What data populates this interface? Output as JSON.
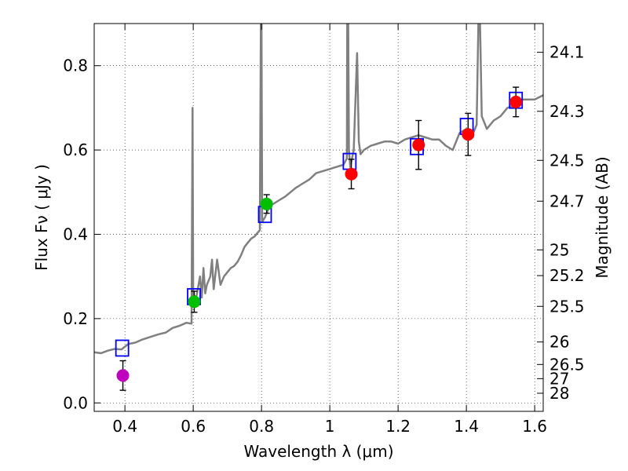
{
  "chart_data": {
    "type": "scatter",
    "xlabel": "Wavelength  λ (μm)",
    "ylabel": "Flux  Fν  ( μJy )",
    "y2label": "Magnitude (AB)",
    "xlim": [
      0.31,
      1.625
    ],
    "ylim": [
      -0.02,
      0.9
    ],
    "x_ticks": [
      "0.4",
      "0.6",
      "0.8",
      "1",
      "1.2",
      "1.4",
      "1.6"
    ],
    "x_tick_values": [
      0.4,
      0.6,
      0.8,
      1.0,
      1.2,
      1.4,
      1.6
    ],
    "y_ticks": [
      "0.0",
      "0.2",
      "0.4",
      "0.6",
      "0.8"
    ],
    "y_tick_values": [
      0.0,
      0.2,
      0.4,
      0.6,
      0.8
    ],
    "y2_ticks": [
      "24.1",
      "24.3",
      "24.5",
      "24.7",
      "25",
      "25.2",
      "25.5",
      "26",
      "26.5",
      "27",
      "28"
    ],
    "y2_tick_values": [
      24.1,
      24.3,
      24.5,
      24.7,
      25.0,
      25.2,
      25.5,
      26.0,
      26.5,
      27.0,
      28.0
    ],
    "grid": true,
    "model_color": "#808080",
    "observed_points": [
      {
        "x": 0.394,
        "y": 0.065,
        "err": 0.035,
        "color": "#bf00bf"
      },
      {
        "x": 0.603,
        "y": 0.24,
        "err": 0.025,
        "color": "#00bf00"
      },
      {
        "x": 0.815,
        "y": 0.472,
        "err": 0.022,
        "color": "#00bf00"
      },
      {
        "x": 1.063,
        "y": 0.543,
        "err": 0.035,
        "color": "#ff0000"
      },
      {
        "x": 1.26,
        "y": 0.612,
        "err": 0.058,
        "color": "#ff0000"
      },
      {
        "x": 1.405,
        "y": 0.637,
        "err": 0.05,
        "color": "#ff0000"
      },
      {
        "x": 1.545,
        "y": 0.714,
        "err": 0.035,
        "color": "#ff0000"
      }
    ],
    "model_photometry": {
      "color": "#0000ff",
      "points": [
        {
          "x": 0.392,
          "y": 0.13
        },
        {
          "x": 0.602,
          "y": 0.252
        },
        {
          "x": 0.81,
          "y": 0.447
        },
        {
          "x": 1.058,
          "y": 0.573
        },
        {
          "x": 1.255,
          "y": 0.608
        },
        {
          "x": 1.401,
          "y": 0.656
        },
        {
          "x": 1.545,
          "y": 0.718
        }
      ]
    },
    "model_spectrum": [
      [
        0.31,
        0.12
      ],
      [
        0.33,
        0.118
      ],
      [
        0.35,
        0.124
      ],
      [
        0.37,
        0.128
      ],
      [
        0.39,
        0.127
      ],
      [
        0.41,
        0.14
      ],
      [
        0.43,
        0.143
      ],
      [
        0.45,
        0.15
      ],
      [
        0.48,
        0.158
      ],
      [
        0.5,
        0.163
      ],
      [
        0.52,
        0.167
      ],
      [
        0.54,
        0.178
      ],
      [
        0.56,
        0.183
      ],
      [
        0.58,
        0.19
      ],
      [
        0.595,
        0.188
      ],
      [
        0.598,
        0.7
      ],
      [
        0.6,
        0.25
      ],
      [
        0.61,
        0.255
      ],
      [
        0.62,
        0.3
      ],
      [
        0.625,
        0.25
      ],
      [
        0.63,
        0.32
      ],
      [
        0.635,
        0.26
      ],
      [
        0.64,
        0.28
      ],
      [
        0.65,
        0.3
      ],
      [
        0.655,
        0.34
      ],
      [
        0.66,
        0.27
      ],
      [
        0.67,
        0.34
      ],
      [
        0.68,
        0.28
      ],
      [
        0.69,
        0.3
      ],
      [
        0.7,
        0.31
      ],
      [
        0.71,
        0.32
      ],
      [
        0.72,
        0.325
      ],
      [
        0.73,
        0.335
      ],
      [
        0.74,
        0.35
      ],
      [
        0.75,
        0.37
      ],
      [
        0.76,
        0.38
      ],
      [
        0.77,
        0.39
      ],
      [
        0.78,
        0.395
      ],
      [
        0.795,
        0.41
      ],
      [
        0.798,
        0.9
      ],
      [
        0.8,
        0.9
      ],
      [
        0.802,
        0.43
      ],
      [
        0.81,
        0.44
      ],
      [
        0.82,
        0.46
      ],
      [
        0.83,
        0.47
      ],
      [
        0.85,
        0.48
      ],
      [
        0.87,
        0.49
      ],
      [
        0.9,
        0.51
      ],
      [
        0.92,
        0.52
      ],
      [
        0.94,
        0.53
      ],
      [
        0.96,
        0.545
      ],
      [
        0.98,
        0.55
      ],
      [
        1.0,
        0.555
      ],
      [
        1.02,
        0.56
      ],
      [
        1.04,
        0.565
      ],
      [
        1.05,
        0.58
      ],
      [
        1.051,
        0.9
      ],
      [
        1.054,
        0.9
      ],
      [
        1.056,
        0.6
      ],
      [
        1.06,
        0.56
      ],
      [
        1.07,
        0.6
      ],
      [
        1.08,
        0.83
      ],
      [
        1.085,
        0.62
      ],
      [
        1.09,
        0.59
      ],
      [
        1.1,
        0.6
      ],
      [
        1.12,
        0.61
      ],
      [
        1.14,
        0.615
      ],
      [
        1.16,
        0.62
      ],
      [
        1.18,
        0.62
      ],
      [
        1.2,
        0.615
      ],
      [
        1.22,
        0.625
      ],
      [
        1.24,
        0.63
      ],
      [
        1.26,
        0.635
      ],
      [
        1.28,
        0.63
      ],
      [
        1.3,
        0.625
      ],
      [
        1.32,
        0.625
      ],
      [
        1.34,
        0.61
      ],
      [
        1.36,
        0.6
      ],
      [
        1.38,
        0.64
      ],
      [
        1.4,
        0.65
      ],
      [
        1.42,
        0.64
      ],
      [
        1.43,
        0.66
      ],
      [
        1.435,
        0.9
      ],
      [
        1.44,
        0.9
      ],
      [
        1.445,
        0.68
      ],
      [
        1.45,
        0.67
      ],
      [
        1.46,
        0.65
      ],
      [
        1.48,
        0.67
      ],
      [
        1.5,
        0.68
      ],
      [
        1.52,
        0.7
      ],
      [
        1.54,
        0.705
      ],
      [
        1.56,
        0.72
      ],
      [
        1.58,
        0.72
      ],
      [
        1.6,
        0.72
      ],
      [
        1.625,
        0.73
      ]
    ]
  }
}
